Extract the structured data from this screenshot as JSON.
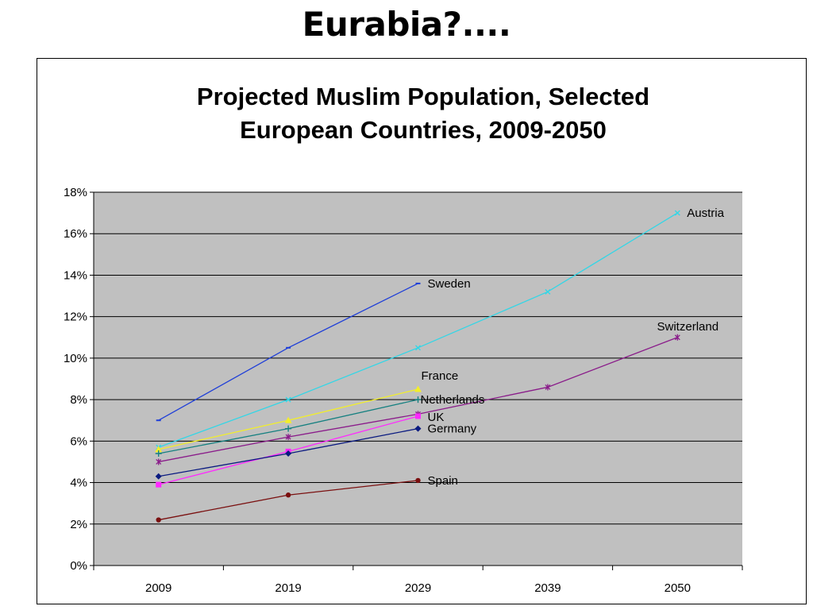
{
  "slide": {
    "title": "Eurabia?...."
  },
  "colors": {
    "plot_background": "#c0c0c0",
    "gridline": "#000000",
    "Sweden": "#1f3fd8",
    "Austria": "#33d6e6",
    "Switzerland": "#8a1c8a",
    "France": "#f2ee2a",
    "Netherlands": "#158080",
    "UK": "#ff28ff",
    "Germany": "#0a1a80",
    "Spain": "#7a0f0f"
  },
  "chart_data": {
    "type": "line",
    "title_lines": [
      "Projected Muslim Population, Selected",
      "European Countries, 2009-2050"
    ],
    "xlabel": "",
    "ylabel": "",
    "x": [
      "2009",
      "2019",
      "2029",
      "2039",
      "2050"
    ],
    "ylim": [
      0,
      18
    ],
    "yticks": [
      0,
      2,
      4,
      6,
      8,
      10,
      12,
      14,
      16,
      18
    ],
    "ytick_labels": [
      "0%",
      "2%",
      "4%",
      "6%",
      "8%",
      "10%",
      "12%",
      "14%",
      "16%",
      "18%"
    ],
    "grid": true,
    "legend": "inline labels at series ends",
    "series": [
      {
        "name": "Sweden",
        "marker": "dash",
        "values": [
          7.0,
          10.5,
          13.6,
          null,
          null
        ]
      },
      {
        "name": "Austria",
        "marker": "x",
        "values": [
          5.7,
          8.0,
          10.5,
          13.2,
          17.0
        ]
      },
      {
        "name": "Switzerland",
        "marker": "star",
        "values": [
          5.0,
          6.2,
          7.3,
          8.6,
          11.0
        ]
      },
      {
        "name": "France",
        "marker": "triangle",
        "values": [
          5.6,
          7.0,
          8.5,
          null,
          null
        ]
      },
      {
        "name": "Netherlands",
        "marker": "plus",
        "values": [
          5.4,
          6.6,
          8.0,
          null,
          null
        ]
      },
      {
        "name": "UK",
        "marker": "square",
        "values": [
          3.9,
          5.5,
          7.2,
          null,
          null
        ]
      },
      {
        "name": "Germany",
        "marker": "diamond",
        "values": [
          4.3,
          5.4,
          6.6,
          null,
          null
        ]
      },
      {
        "name": "Spain",
        "marker": "circle",
        "values": [
          2.2,
          3.4,
          4.1,
          null,
          null
        ]
      }
    ]
  }
}
